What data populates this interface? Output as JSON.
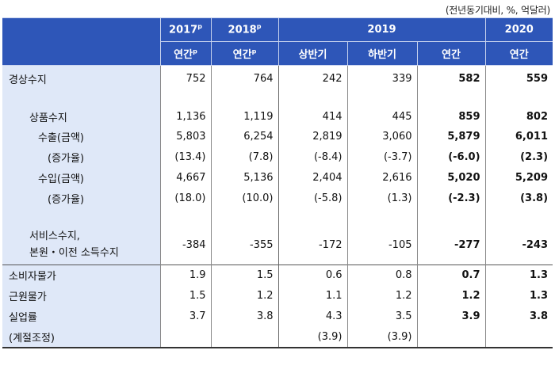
{
  "unit_note": "(전년동기대비, %, 억달러)",
  "header": {
    "row1": [
      {
        "label": "2017",
        "sup": "p"
      },
      {
        "label": "2018",
        "sup": "p"
      },
      {
        "label": "2019",
        "sup": ""
      },
      {
        "label": "2020",
        "sup": ""
      }
    ],
    "row2": [
      {
        "label": "연간",
        "sup": "p"
      },
      {
        "label": "연간",
        "sup": "p"
      },
      {
        "label": "상반기",
        "sup": ""
      },
      {
        "label": "하반기",
        "sup": ""
      },
      {
        "label": "연간",
        "sup": ""
      },
      {
        "label": "연간",
        "sup": ""
      }
    ]
  },
  "rows": [
    {
      "label": "경상수지",
      "values": [
        "752",
        "764",
        "242",
        "339",
        "582",
        "559"
      ]
    },
    {
      "label": "상품수지",
      "values": [
        "1,136",
        "1,119",
        "414",
        "445",
        "859",
        "802"
      ]
    },
    {
      "label": "수출(금액)",
      "values": [
        "5,803",
        "6,254",
        "2,819",
        "3,060",
        "5,879",
        "6,011"
      ]
    },
    {
      "label": "(증가율)",
      "values": [
        "(13.4)",
        "(7.8)",
        "(-8.4)",
        "(-3.7)",
        "(-6.0)",
        "(2.3)"
      ]
    },
    {
      "label": "수입(금액)",
      "values": [
        "4,667",
        "5,136",
        "2,404",
        "2,616",
        "5,020",
        "5,209"
      ]
    },
    {
      "label": "(증가율)",
      "values": [
        "(18.0)",
        "(10.0)",
        "(-5.8)",
        "(1.3)",
        "(-2.3)",
        "(3.8)"
      ]
    },
    {
      "label": "서비스수지,",
      "label2": "본원・이전 소득수지",
      "values": [
        "-384",
        "-355",
        "-172",
        "-105",
        "-277",
        "-243"
      ]
    },
    {
      "label": "소비자물가",
      "values": [
        "1.9",
        "1.5",
        "0.6",
        "0.8",
        "0.7",
        "1.3"
      ]
    },
    {
      "label": "근원물가",
      "values": [
        "1.5",
        "1.2",
        "1.1",
        "1.2",
        "1.2",
        "1.3"
      ]
    },
    {
      "label": "실업률",
      "values": [
        "3.7",
        "3.8",
        "4.3",
        "3.5",
        "3.9",
        "3.8"
      ]
    },
    {
      "label": "(계절조정)",
      "values": [
        "",
        "",
        "(3.9)",
        "(3.9)",
        "",
        ""
      ]
    }
  ]
}
